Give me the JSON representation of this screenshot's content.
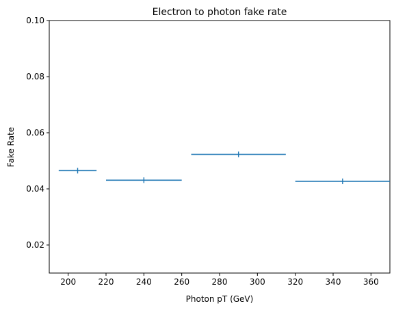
{
  "chart_data": {
    "type": "scatter",
    "title": "Electron to photon fake rate",
    "xlabel": "Photon pT (GeV)",
    "ylabel": "Fake Rate",
    "xlim": [
      190,
      370
    ],
    "ylim": [
      0.01,
      0.1
    ],
    "x_ticks": [
      "200",
      "220",
      "240",
      "260",
      "280",
      "300",
      "320",
      "340",
      "360"
    ],
    "y_ticks": [
      "0.02",
      "0.04",
      "0.06",
      "0.08",
      "0.10"
    ],
    "grid": false,
    "color": "#1f77b4",
    "series": [
      {
        "points": [
          {
            "x": 205,
            "x_low": 195,
            "x_high": 215,
            "y": 0.0465,
            "y_err": 0.001
          },
          {
            "x": 240,
            "x_low": 220,
            "x_high": 260,
            "y": 0.0431,
            "y_err": 0.001
          },
          {
            "x": 290,
            "x_low": 265,
            "x_high": 315,
            "y": 0.0523,
            "y_err": 0.001
          },
          {
            "x": 345,
            "x_low": 320,
            "x_high": 370,
            "y": 0.0427,
            "y_err": 0.001
          }
        ]
      }
    ]
  }
}
